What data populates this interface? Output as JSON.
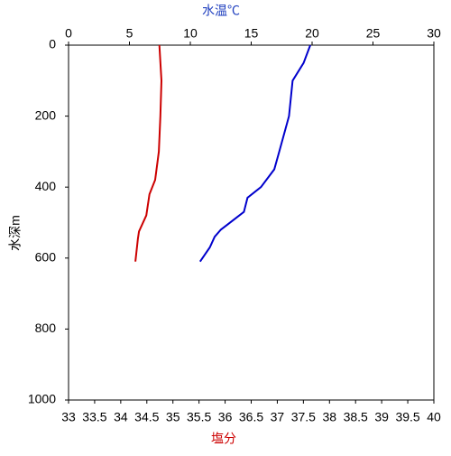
{
  "chart_data": {
    "type": "line",
    "x2label": "水温℃",
    "xlabel": "塩分",
    "ylabel": "水深m",
    "x2lim": [
      0,
      30
    ],
    "x2ticks": [
      0,
      5,
      10,
      15,
      20,
      25,
      30
    ],
    "x2color": "#1f3fbf",
    "xlim": [
      33,
      40
    ],
    "xticks": [
      33,
      33.5,
      34,
      34.5,
      35,
      35.5,
      36,
      36.5,
      37,
      37.5,
      38,
      38.5,
      39,
      39.5,
      40
    ],
    "xcolor": "#cc0000",
    "ylim": [
      0,
      1000
    ],
    "yticks": [
      0,
      200,
      400,
      600,
      800,
      1000
    ],
    "y_inverted": true,
    "series": [
      {
        "color": "#0000cc",
        "axis": "x2",
        "x": [
          19.85,
          19.3,
          18.4,
          18.1,
          17.3,
          16.9,
          15.8,
          14.7,
          14.4,
          12.5,
          12.0,
          11.6,
          10.8
        ],
        "values": [
          0,
          50,
          100,
          200,
          300,
          350,
          400,
          430,
          470,
          520,
          540,
          570,
          610
        ]
      },
      {
        "color": "#cc0000",
        "axis": "x",
        "x": [
          34.74,
          34.78,
          34.76,
          34.73,
          34.66,
          34.55,
          34.49,
          34.35,
          34.33,
          34.28
        ],
        "values": [
          0,
          100,
          200,
          300,
          380,
          420,
          480,
          525,
          545,
          610
        ]
      }
    ]
  }
}
